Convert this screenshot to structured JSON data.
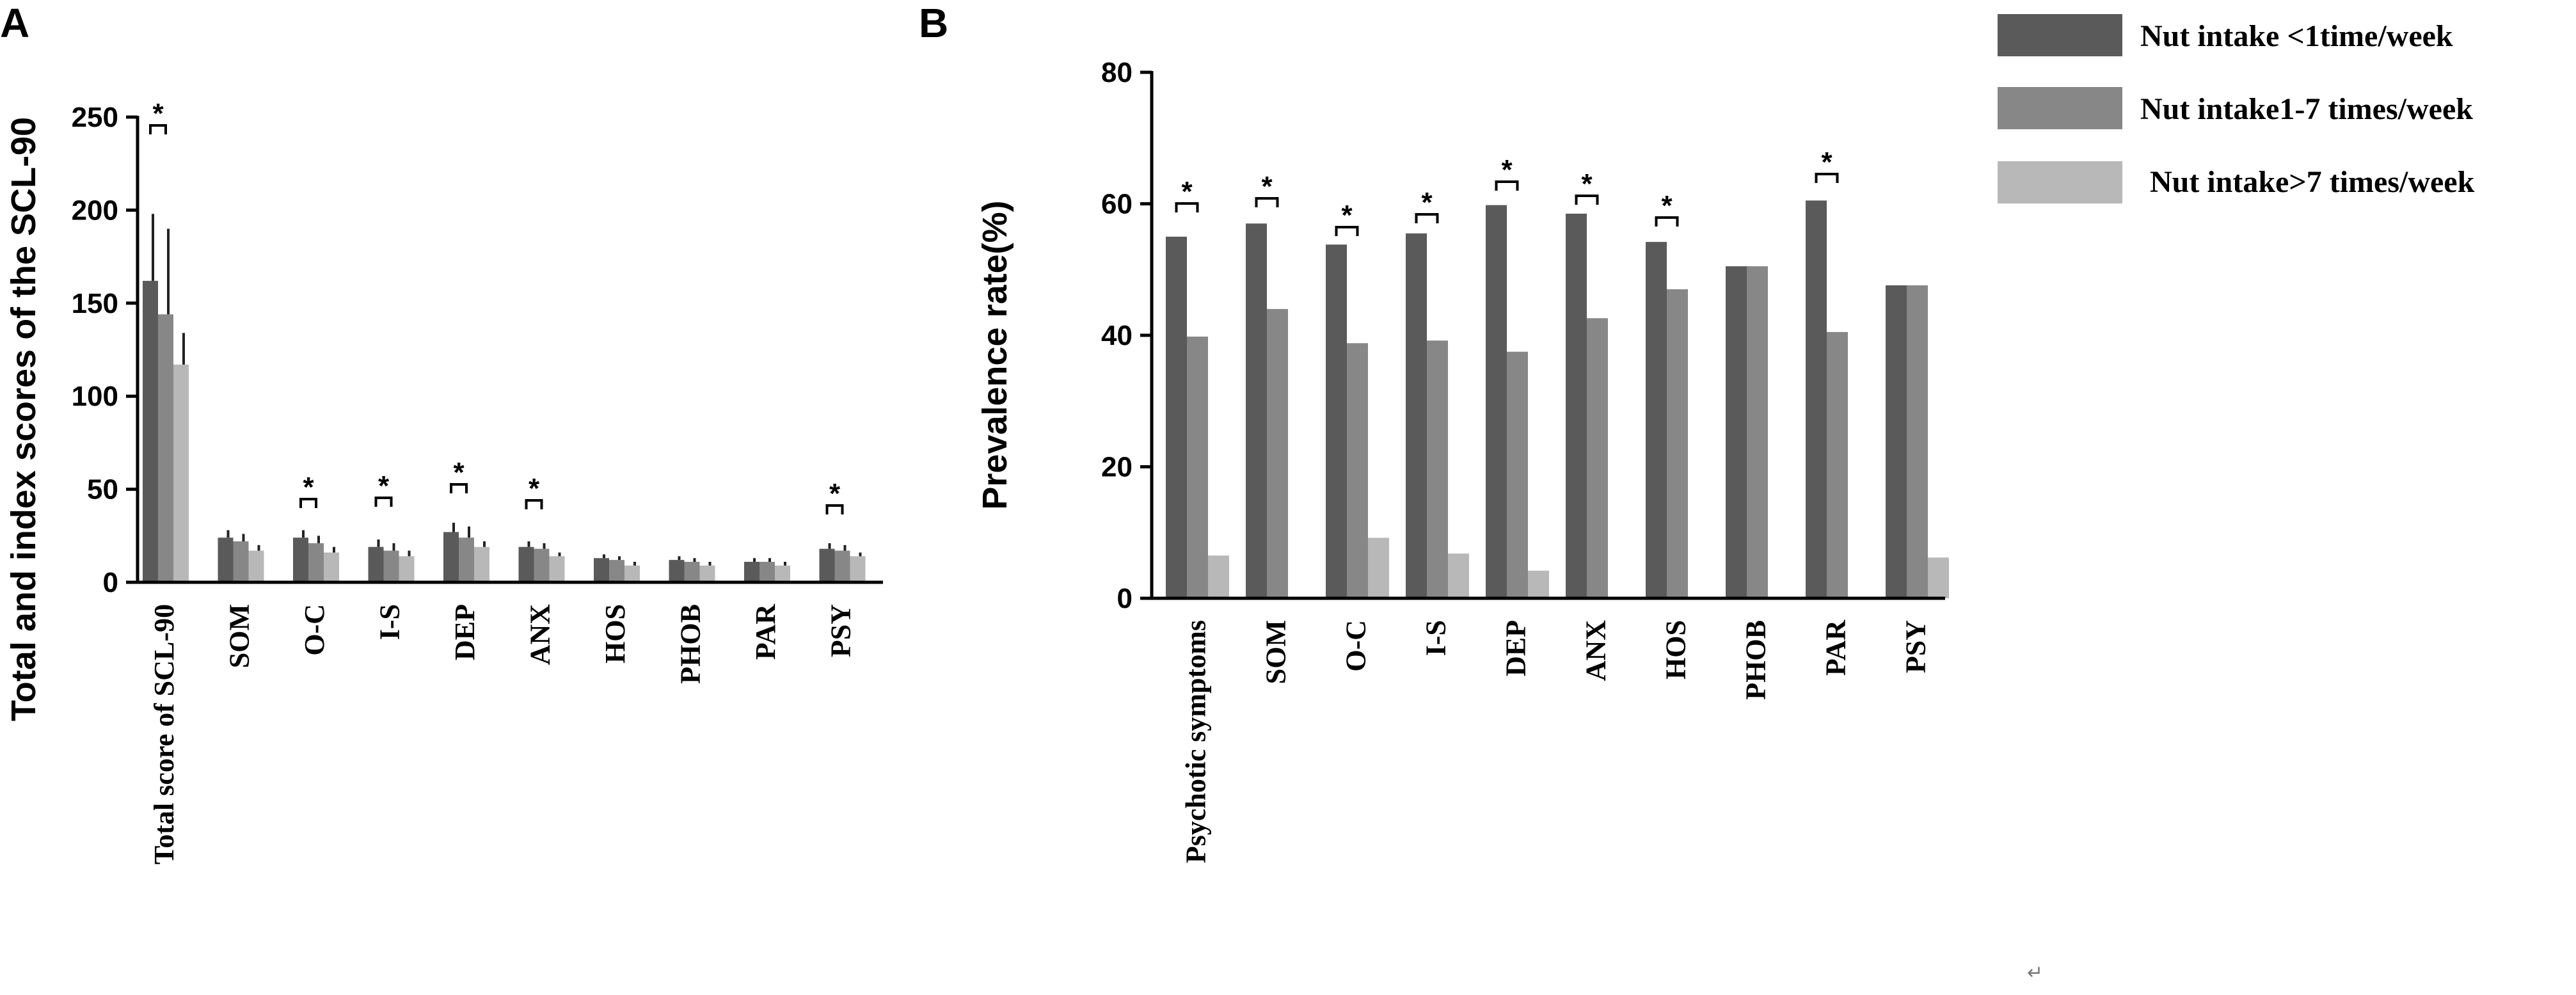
{
  "colors": {
    "series1": "#5a5a5a",
    "series2": "#878787",
    "series3": "#b8b8b8"
  },
  "legend": {
    "entries": [
      "Nut intake <1time/week",
      "Nut intake1-7 times/week",
      "Nut intake>7 times/week"
    ]
  },
  "chart_data": [
    {
      "panel": "A",
      "type": "bar",
      "ylabel": "Total and index scores of the SCL-90",
      "xlabel": "",
      "ylim": [
        0,
        250
      ],
      "yticks": [
        0,
        50,
        100,
        150,
        200,
        250
      ],
      "categories": [
        "Total score of SCL-90",
        "SOM",
        "O-C",
        "I-S",
        "DEP",
        "ANX",
        "HOS",
        "PHOB",
        "PAR",
        "PSY"
      ],
      "series": [
        {
          "values": [
            162,
            24,
            24,
            19,
            27,
            19,
            13,
            12,
            11,
            18
          ],
          "errors": [
            36,
            4,
            4,
            4,
            5,
            3,
            2,
            2,
            2,
            3
          ]
        },
        {
          "values": [
            144,
            22,
            21,
            17,
            24,
            18,
            12,
            11,
            11,
            17
          ],
          "errors": [
            46,
            4,
            4,
            4,
            6,
            3,
            2,
            2,
            2,
            3
          ]
        },
        {
          "values": [
            117,
            17,
            16,
            14,
            19,
            14,
            9,
            9,
            9,
            14
          ],
          "errors": [
            17,
            3,
            3,
            3,
            3,
            2,
            2,
            2,
            2,
            2
          ]
        }
      ],
      "significance": [
        "*",
        "",
        "*",
        "*",
        "*",
        "*",
        "",
        "",
        "",
        "*"
      ]
    },
    {
      "panel": "B",
      "type": "bar",
      "ylabel": "Prevalence rate(%)",
      "xlabel": "",
      "ylim": [
        0,
        80
      ],
      "yticks": [
        0,
        20,
        40,
        60,
        80
      ],
      "categories": [
        "Psychotic symptoms",
        "SOM",
        "O-C",
        "I-S",
        "DEP",
        "ANX",
        "HOS",
        "PHOB",
        "PAR",
        "PSY"
      ],
      "series": [
        {
          "values": [
            55,
            57,
            53.8,
            55.5,
            59.8,
            58.5,
            54.2,
            50.5,
            60.5,
            47.6
          ]
        },
        {
          "values": [
            39.8,
            44,
            38.8,
            39.2,
            37.5,
            42.6,
            47,
            50.5,
            40.5,
            47.6
          ]
        },
        {
          "values": [
            6.5,
            0,
            9.2,
            6.8,
            4.2,
            0,
            0,
            0,
            0,
            6.2
          ]
        }
      ],
      "significance": [
        "*",
        "*",
        "*",
        "*",
        "*",
        "*",
        "*",
        "",
        "*",
        ""
      ]
    }
  ]
}
